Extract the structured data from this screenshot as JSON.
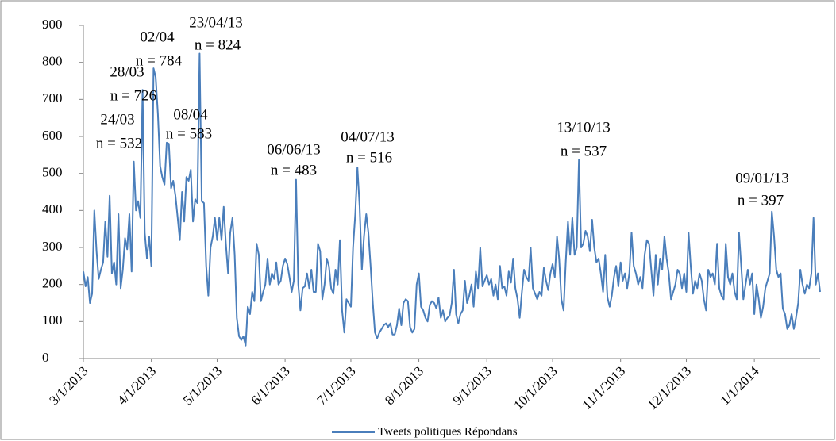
{
  "chart_data": {
    "type": "line",
    "xlim": [
      "3/1/2013",
      "1/31/2014"
    ],
    "xticks": [
      "3/1/2013",
      "4/1/2013",
      "5/1/2013",
      "6/1/2013",
      "7/1/2013",
      "8/1/2013",
      "9/1/2013",
      "10/1/2013",
      "11/1/2013",
      "12/1/2013",
      "1/1/2014"
    ],
    "ylim": [
      0,
      900
    ],
    "yticks": [
      0,
      100,
      200,
      300,
      400,
      500,
      600,
      700,
      800,
      900
    ],
    "legend": "bottom",
    "series": [
      {
        "name": "Tweets politiques Répondans",
        "color": "#4a7ebb",
        "values": [
          235,
          195,
          220,
          150,
          175,
          400,
          290,
          215,
          240,
          260,
          370,
          275,
          440,
          230,
          260,
          200,
          390,
          190,
          240,
          325,
          295,
          390,
          235,
          532,
          400,
          425,
          380,
          726,
          340,
          270,
          330,
          250,
          784,
          760,
          660,
          520,
          490,
          470,
          583,
          580,
          460,
          480,
          440,
          380,
          320,
          450,
          370,
          490,
          480,
          510,
          370,
          430,
          420,
          824,
          425,
          420,
          250,
          170,
          300,
          330,
          380,
          320,
          380,
          320,
          410,
          310,
          230,
          340,
          380,
          280,
          110,
          60,
          50,
          60,
          35,
          140,
          120,
          180,
          155,
          310,
          280,
          155,
          180,
          200,
          270,
          200,
          230,
          215,
          260,
          200,
          210,
          250,
          270,
          255,
          220,
          180,
          210,
          483,
          200,
          130,
          190,
          195,
          230,
          190,
          240,
          180,
          180,
          310,
          290,
          160,
          200,
          270,
          250,
          190,
          175,
          240,
          200,
          320,
          130,
          70,
          160,
          150,
          140,
          300,
          390,
          516,
          410,
          240,
          330,
          390,
          340,
          250,
          150,
          70,
          55,
          70,
          80,
          90,
          95,
          85,
          95,
          65,
          65,
          90,
          135,
          90,
          150,
          160,
          155,
          85,
          70,
          80,
          200,
          230,
          140,
          130,
          110,
          100,
          145,
          155,
          150,
          135,
          165,
          110,
          130,
          100,
          110,
          115,
          150,
          240,
          120,
          95,
          120,
          130,
          210,
          150,
          170,
          200,
          140,
          235,
          190,
          300,
          195,
          210,
          225,
          200,
          215,
          170,
          200,
          160,
          250,
          190,
          195,
          170,
          235,
          205,
          270,
          190,
          160,
          110,
          180,
          240,
          220,
          210,
          300,
          190,
          175,
          160,
          180,
          170,
          245,
          210,
          185,
          230,
          255,
          220,
          330,
          270,
          160,
          130,
          260,
          370,
          280,
          380,
          280,
          300,
          537,
          300,
          310,
          345,
          330,
          290,
          375,
          300,
          260,
          270,
          230,
          180,
          280,
          165,
          140,
          170,
          220,
          250,
          195,
          260,
          210,
          230,
          190,
          230,
          340,
          250,
          230,
          200,
          220,
          190,
          280,
          320,
          310,
          240,
          170,
          280,
          200,
          270,
          240,
          330,
          270,
          230,
          160,
          180,
          200,
          240,
          230,
          190,
          230,
          180,
          340,
          250,
          175,
          210,
          190,
          230,
          210,
          160,
          130,
          240,
          220,
          230,
          200,
          310,
          190,
          170,
          160,
          310,
          220,
          200,
          230,
          180,
          160,
          340,
          250,
          160,
          200,
          240,
          200,
          230,
          120,
          200,
          160,
          110,
          140,
          190,
          210,
          230,
          397,
          330,
          240,
          220,
          230,
          135,
          120,
          80,
          90,
          120,
          80,
          110,
          150,
          240,
          200,
          175,
          200,
          190,
          230,
          380,
          200,
          230,
          180
        ]
      }
    ],
    "annotations": [
      {
        "date": "24/03",
        "text": "n = 532"
      },
      {
        "date": "28/03",
        "text": "n = 726"
      },
      {
        "date": "02/04",
        "text": "n = 784"
      },
      {
        "date": "23/04/13",
        "text": "n = 824"
      },
      {
        "date": "08/04",
        "text": "n = 583"
      },
      {
        "date": "06/06/13",
        "text": "n = 483"
      },
      {
        "date": "04/07/13",
        "text": "n = 516"
      },
      {
        "date": "13/10/13",
        "text": "n = 537"
      },
      {
        "date": "09/01/13",
        "text": "n = 397"
      }
    ]
  }
}
